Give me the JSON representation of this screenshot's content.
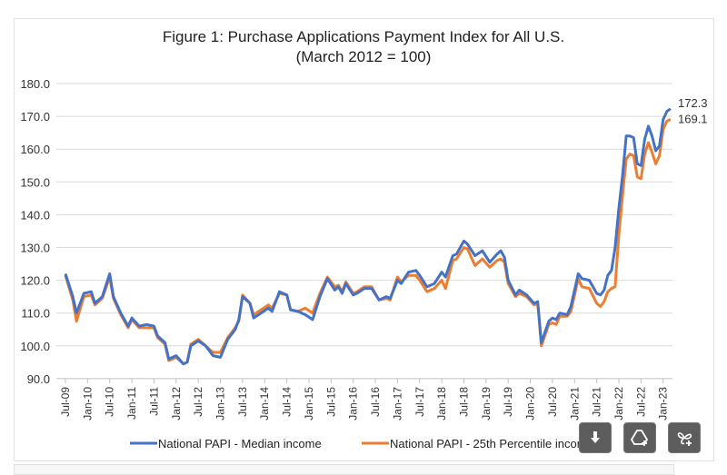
{
  "chart_data": {
    "type": "line",
    "title": "Figure 1: Purchase Applications Payment Index for All U.S.",
    "subtitle": "(March 2012 = 100)",
    "xlabel": "",
    "ylabel": "",
    "ylim": [
      90,
      180
    ],
    "yticks": [
      "90.0",
      "100.0",
      "110.0",
      "120.0",
      "130.0",
      "140.0",
      "150.0",
      "160.0",
      "170.0",
      "180.0"
    ],
    "xticks": [
      "Jul-09",
      "Jan-10",
      "Jul-10",
      "Jan-11",
      "Jul-11",
      "Jan-12",
      "Jul-12",
      "Jan-13",
      "Jul-13",
      "Jan-14",
      "Jul-14",
      "Jan-15",
      "Jul-15",
      "Jan-16",
      "Jul-16",
      "Jan-17",
      "Jul-17",
      "Jan-18",
      "Jul-18",
      "Jan-19",
      "Jul-19",
      "Jan-20",
      "Jul-20",
      "Jan-21",
      "Jul-21",
      "Jan-22",
      "Jul-22",
      "Jan-23"
    ],
    "grid": true,
    "legend_position": "bottom",
    "end_labels": [
      "172.3",
      "169.1"
    ],
    "x": [
      "2009-07",
      "2009-09",
      "2009-10",
      "2009-12",
      "2010-02",
      "2010-03",
      "2010-05",
      "2010-07",
      "2010-08",
      "2010-10",
      "2010-12",
      "2011-01",
      "2011-03",
      "2011-05",
      "2011-07",
      "2011-08",
      "2011-10",
      "2011-11",
      "2012-01",
      "2012-03",
      "2012-04",
      "2012-05",
      "2012-07",
      "2012-09",
      "2012-11",
      "2013-01",
      "2013-03",
      "2013-05",
      "2013-06",
      "2013-07",
      "2013-09",
      "2013-10",
      "2013-12",
      "2014-02",
      "2014-03",
      "2014-05",
      "2014-07",
      "2014-08",
      "2014-10",
      "2014-12",
      "2015-02",
      "2015-04",
      "2015-06",
      "2015-08",
      "2015-09",
      "2015-10",
      "2015-11",
      "2016-01",
      "2016-02",
      "2016-04",
      "2016-06",
      "2016-08",
      "2016-10",
      "2016-11",
      "2017-01",
      "2017-02",
      "2017-04",
      "2017-06",
      "2017-07",
      "2017-09",
      "2017-11",
      "2018-01",
      "2018-02",
      "2018-04",
      "2018-05",
      "2018-07",
      "2018-08",
      "2018-10",
      "2018-12",
      "2019-02",
      "2019-04",
      "2019-05",
      "2019-06",
      "2019-07",
      "2019-09",
      "2019-10",
      "2019-12",
      "2020-02",
      "2020-03",
      "2020-04",
      "2020-06",
      "2020-07",
      "2020-08",
      "2020-09",
      "2020-11",
      "2020-12",
      "2021-02",
      "2021-03",
      "2021-05",
      "2021-07",
      "2021-08",
      "2021-09",
      "2021-10",
      "2021-11",
      "2021-12",
      "2022-01",
      "2022-02",
      "2022-03",
      "2022-04",
      "2022-05",
      "2022-06",
      "2022-07",
      "2022-08",
      "2022-09",
      "2022-10",
      "2022-11",
      "2022-12",
      "2023-01",
      "2023-02",
      "2023-03"
    ],
    "series": [
      {
        "name": "National PAPI - Median income",
        "color": "#4472C4",
        "values": [
          122,
          115,
          110,
          116,
          116.5,
          113,
          115,
          122,
          115,
          110,
          106,
          108.5,
          106,
          106.5,
          106,
          103,
          101,
          96,
          97,
          94.5,
          95,
          100,
          101.5,
          100,
          97,
          96.5,
          102,
          105,
          108,
          115,
          113,
          108.5,
          110,
          111.5,
          110.5,
          116.5,
          115.5,
          111,
          110.5,
          109.5,
          108,
          115,
          120.5,
          117,
          118,
          116,
          119,
          115.5,
          116,
          117.5,
          117.5,
          114,
          115,
          114.5,
          120,
          119,
          122.5,
          123,
          121.5,
          118,
          119,
          122.5,
          121,
          127.5,
          128,
          132,
          131,
          127.5,
          129,
          125.5,
          128,
          129,
          127,
          120,
          115.5,
          117,
          115.5,
          113,
          113.5,
          101,
          107.5,
          108.5,
          108,
          110,
          109.5,
          112,
          122,
          120.5,
          120,
          116,
          115.5,
          117,
          121.5,
          123,
          130,
          142,
          152,
          164,
          164,
          163.5,
          155.5,
          155,
          163,
          167,
          164,
          159.5,
          161,
          169,
          171.5,
          172.3
        ]
      },
      {
        "name": "National PAPI - 25th Percentile income",
        "color": "#ED7D31",
        "values": [
          121.5,
          114,
          107.5,
          115,
          115.5,
          112.5,
          114.5,
          121,
          114.5,
          109.5,
          105.5,
          108,
          105.5,
          105.5,
          105.5,
          102.5,
          100.5,
          95.5,
          96.5,
          94.5,
          95,
          100.5,
          102,
          100,
          98,
          98,
          102.5,
          105.5,
          107.5,
          115.5,
          113,
          109.5,
          111,
          112.5,
          111.5,
          116,
          115.5,
          111,
          110.5,
          111.5,
          110,
          116,
          121,
          118,
          118.5,
          116.5,
          119.5,
          116,
          116.5,
          118,
          118,
          114,
          114.5,
          114,
          121,
          119.5,
          121.5,
          121.5,
          120,
          116.5,
          117.5,
          120,
          117.5,
          126,
          126.5,
          130,
          129.5,
          124.5,
          126.5,
          124,
          126,
          126.5,
          125.5,
          119,
          115,
          116,
          115,
          112.5,
          113,
          100,
          106.5,
          107,
          106.5,
          109,
          109,
          110.5,
          120.5,
          118,
          117.5,
          113,
          112,
          113.5,
          116.5,
          117.5,
          118,
          134,
          146,
          157,
          158.5,
          158,
          151.5,
          151,
          158.5,
          162,
          159,
          155.5,
          158,
          166,
          168.5,
          169.1
        ]
      }
    ]
  },
  "toolbar": {
    "buttons": [
      {
        "icon": "download-icon"
      },
      {
        "icon": "add-to-drive-icon"
      },
      {
        "icon": "add-extension-icon"
      }
    ]
  }
}
